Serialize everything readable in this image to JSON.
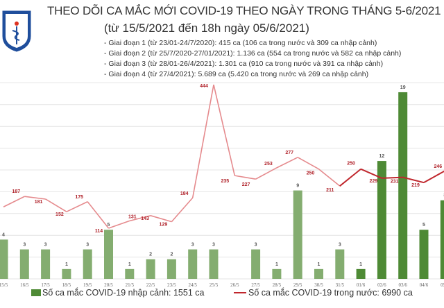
{
  "header": {
    "title": "THEO DÕI CA MẮC MỚI COVID-19 THEO NGÀY TRONG THÁNG 5-6/2021",
    "subtitle": "(từ 15/5/2021 đến 18h ngày 05/6/2021)",
    "notes": [
      "- Giai đoạn 1 (từ 23/01-24/7/2020): 415 ca (106 ca trong nước và 309 ca nhập cảnh)",
      "- Giai đoạn 2 (từ 25/7/2020-27/01/2021): 1.136 ca (554 ca trong nước và 582 ca nhập cảnh)",
      "- Giai đoạn 3 (từ 28/01-26/4/2021): 1.301 ca (910 ca trong nước và 391 ca nhập cảnh)",
      "- Giai đoạn 4 (từ 27/4/2021): 5.689 ca (5.420 ca trong nước và 269 ca nhập cảnh)"
    ],
    "logo_text": "BỘ Y TẾ · MINISTRY OF HEALTH"
  },
  "chart_data": {
    "type": "bar+line",
    "title": "THEO DÕI CA MẮC MỚI COVID-19 THEO NGÀY TRONG THÁNG 5-6/2021",
    "categories": [
      "15/5",
      "16/5",
      "17/5",
      "18/5",
      "19/5",
      "20/5",
      "21/5",
      "22/5",
      "23/5",
      "24/5",
      "25/5",
      "26/5",
      "27/5",
      "28/5",
      "29/5",
      "30/5",
      "31/5",
      "01/6",
      "02/6",
      "03/6",
      "04/6",
      "05/6"
    ],
    "grid": true,
    "legend_position": "bottom",
    "series": [
      {
        "name": "Số ca mắc COVID-19 nhập cảnh: 1551 ca",
        "type": "bar",
        "color": "#4e8a35",
        "faded_color": "#84ad70",
        "values": [
          4,
          3,
          3,
          1,
          3,
          5,
          1,
          2,
          2,
          3,
          3,
          0,
          3,
          1,
          9,
          1,
          3,
          1,
          12,
          19,
          5,
          8
        ]
      },
      {
        "name": "Số ca mắc COVID-19 trong nước: 6990 ca",
        "type": "line",
        "color": "#c0272d",
        "faded_color": "#e58a8d",
        "values": [
          163,
          187,
          181,
          152,
          175,
          114,
          131,
          143,
          129,
          184,
          444,
          235,
          227,
          253,
          277,
          250,
          211,
          250,
          229,
          231,
          219,
          246
        ]
      }
    ]
  }
}
